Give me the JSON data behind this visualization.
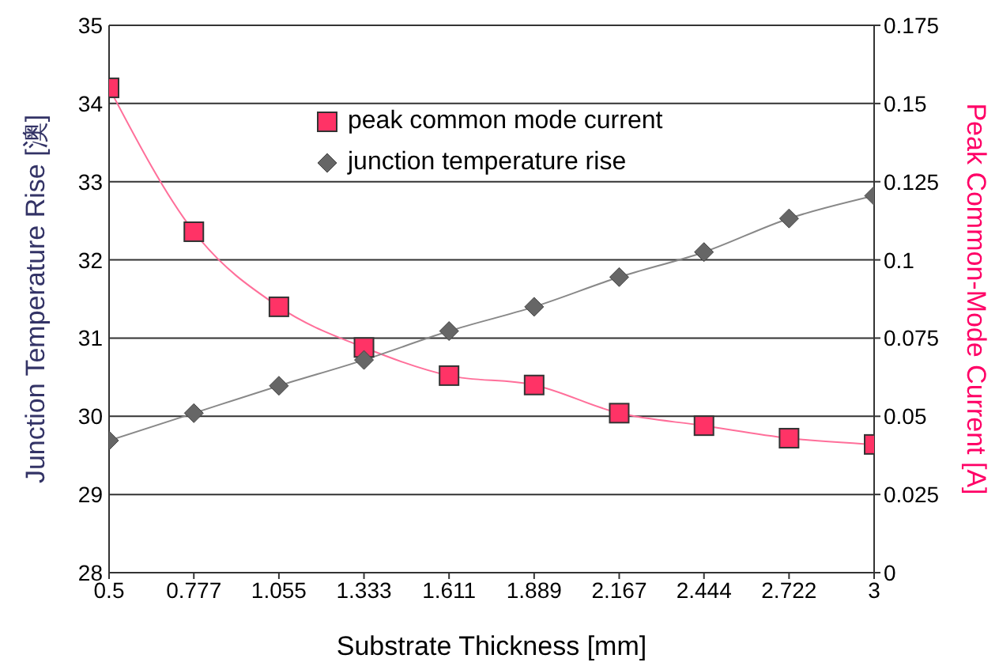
{
  "chart_data": {
    "type": "line",
    "xlabel": "Substrate Thickness [mm]",
    "ylabel": "Junction Temperature Rise [澳]",
    "y2label": "Peak Common-Mode Current [A]",
    "x": [
      0.5,
      0.777,
      1.055,
      1.333,
      1.611,
      1.889,
      2.167,
      2.444,
      2.722,
      3
    ],
    "xlim": [
      0.5,
      3
    ],
    "xticks": [
      0.5,
      0.777,
      1.055,
      1.333,
      1.611,
      1.889,
      2.167,
      2.444,
      2.722,
      3
    ],
    "ylim": [
      28,
      35
    ],
    "yticks": [
      28,
      29,
      30,
      31,
      32,
      33,
      34,
      35
    ],
    "y2lim": [
      0,
      0.175
    ],
    "y2ticks": [
      0,
      0.025,
      0.05,
      0.075,
      0.1,
      0.125,
      0.15,
      0.175
    ],
    "series": [
      {
        "name": "peak common mode current",
        "color": "#ff3366",
        "axis": "y2",
        "marker": "square",
        "values": [
          0.155,
          0.109,
          0.085,
          0.072,
          0.063,
          0.06,
          0.051,
          0.047,
          0.043,
          0.041
        ]
      },
      {
        "name": "junction temperature rise",
        "color": "#666666",
        "marker": "diamond",
        "values": [
          29.69,
          30.04,
          30.39,
          30.72,
          31.09,
          31.4,
          31.78,
          32.1,
          32.53,
          32.82
        ]
      }
    ],
    "grid": "y",
    "legend": "top center"
  }
}
